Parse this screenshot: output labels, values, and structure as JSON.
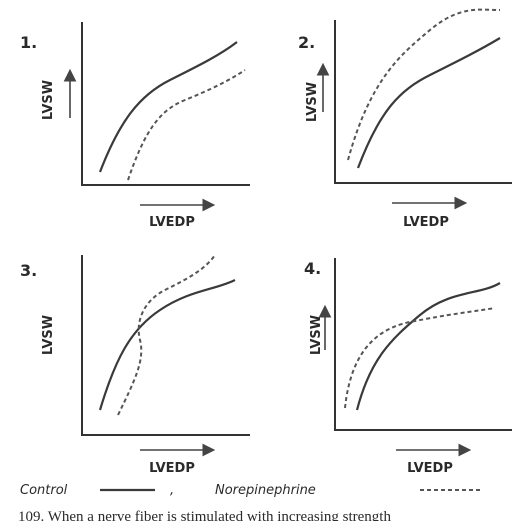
{
  "panels": [
    {
      "label": "1.",
      "y_label": "LVSW",
      "x_label": "LVEDP"
    },
    {
      "label": "2.",
      "y_label": "LVSW",
      "x_label": "LVEDP"
    },
    {
      "label": "3.",
      "y_label": "LVSW",
      "x_label": "LVEDP"
    },
    {
      "label": "4.",
      "y_label": "LVSW",
      "x_label": "LVEDP"
    }
  ],
  "legend": {
    "control": "Control",
    "separator": ",",
    "norepinephrine": "Norepinephrine"
  },
  "question": "109. When a nerve fiber is stimulated with increasing strength"
}
